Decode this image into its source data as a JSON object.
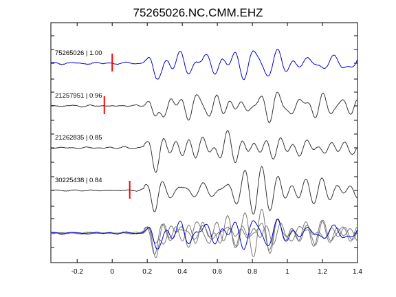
{
  "chart_data": {
    "type": "line",
    "title": "75265026.NC.CMM.EHZ",
    "xlabel": "",
    "ylabel": "",
    "xlim": [
      -0.35,
      1.4
    ],
    "x_ticks": [
      -0.2,
      0,
      0.2,
      0.4,
      0.6,
      0.8,
      1,
      1.2,
      1.4
    ],
    "x_tick_labels": [
      "-0.2",
      "0",
      "0.2",
      "0.4",
      "0.6",
      "0.8",
      "1",
      "1.2",
      "1.4"
    ],
    "grid": false,
    "legend": "none",
    "colors": {
      "primary": "#0000cc",
      "secondary": "#333333",
      "stack": "#777777",
      "pick": "#ff0000"
    },
    "traces": [
      {
        "label": "75265026 | 1.00",
        "pick_time": 0.0,
        "color": "#0000cc",
        "seed": 11
      },
      {
        "label": "21257951 | 0.96",
        "pick_time": -0.045,
        "color": "#333333",
        "seed": 23
      },
      {
        "label": "21262835 | 0.85",
        "pick_time": null,
        "color": "#333333",
        "seed": 37
      },
      {
        "label": "30225438 | 0.84",
        "pick_time": 0.1,
        "color": "#333333",
        "seed": 51
      }
    ],
    "stack_overlay": true
  }
}
